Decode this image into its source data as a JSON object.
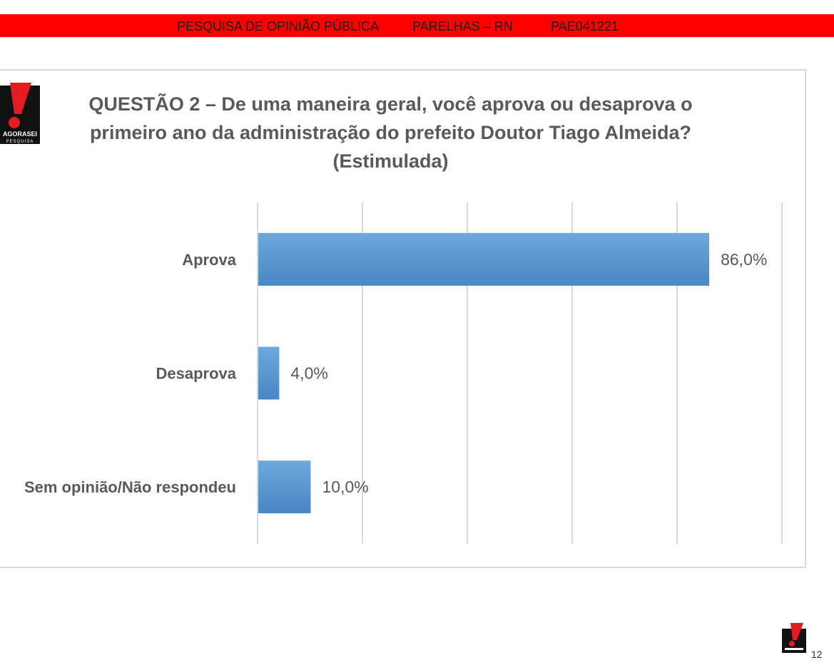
{
  "header": {
    "survey_label": "PESQUISA DE OPINIÃO PÚBLICA",
    "location": "PARELHAS – RN",
    "code": "PAE041221"
  },
  "logo": {
    "text_top": "AGORASEI",
    "text_bottom": "PESQUISA"
  },
  "chart_data": {
    "type": "bar",
    "orientation": "horizontal",
    "title_lines": [
      "QUESTÃO 2 – De uma maneira geral, você aprova ou desaprova o",
      "primeiro ano da administração do prefeito Doutor Tiago Almeida?",
      "(Estimulada)"
    ],
    "categories": [
      "Aprova",
      "Desaprova",
      "Sem opinião/Não respondeu"
    ],
    "values": [
      86.0,
      4.0,
      10.0
    ],
    "value_labels": [
      "86,0%",
      "4,0%",
      "10,0%"
    ],
    "xlim": [
      0,
      100
    ],
    "gridlines": [
      0,
      20,
      40,
      60,
      80,
      100
    ],
    "grid": true,
    "legend": "none",
    "bar_color": "#5b9bd5"
  },
  "footer": {
    "page_number": "12"
  },
  "colors": {
    "accent": "#ff0000",
    "title": "#595959",
    "grid": "#d9d9d9"
  }
}
